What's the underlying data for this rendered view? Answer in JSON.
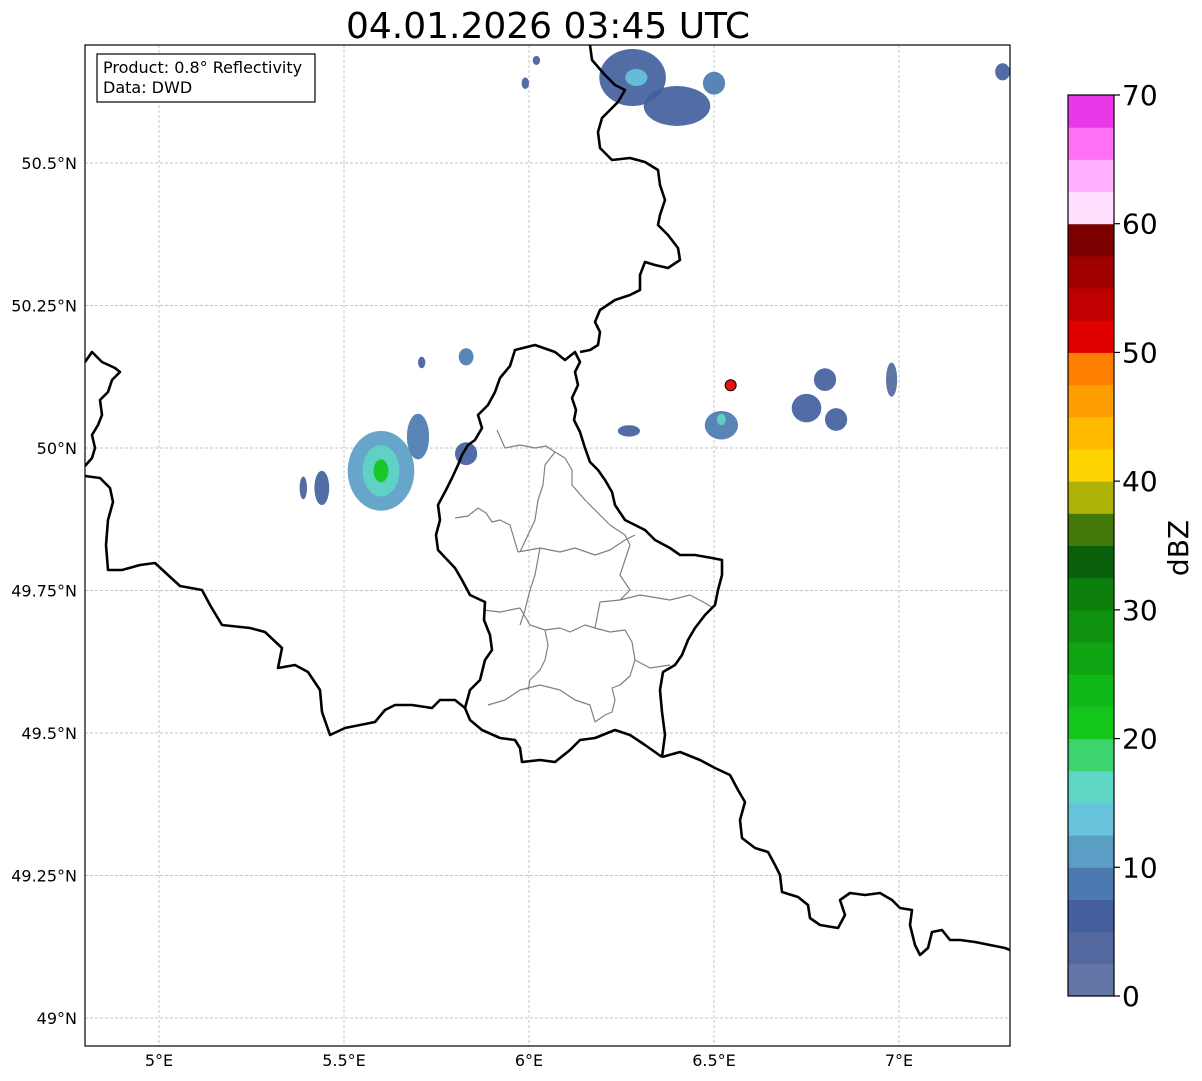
{
  "title": "04.01.2026 03:45 UTC",
  "info_box": {
    "line1": "Product: 0.8° Reflectivity",
    "line2": "Data: DWD"
  },
  "map": {
    "lon_range": [
      4.8,
      7.3
    ],
    "lat_range": [
      48.95,
      50.72
    ],
    "lon_ticks": [
      {
        "value": 5.0,
        "label": "5°E"
      },
      {
        "value": 5.5,
        "label": "5.5°E"
      },
      {
        "value": 6.0,
        "label": "6°E"
      },
      {
        "value": 6.5,
        "label": "6.5°E"
      },
      {
        "value": 7.0,
        "label": "7°E"
      }
    ],
    "lat_ticks": [
      {
        "value": 49.0,
        "label": "49°N"
      },
      {
        "value": 49.25,
        "label": "49.25°N"
      },
      {
        "value": 49.5,
        "label": "49.5°N"
      },
      {
        "value": 49.75,
        "label": "49.75°N"
      },
      {
        "value": 50.0,
        "label": "50°N"
      },
      {
        "value": 50.25,
        "label": "50.25°N"
      },
      {
        "value": 50.5,
        "label": "50.5°N"
      }
    ],
    "marker": {
      "lon": 6.545,
      "lat": 50.11,
      "color": "#ee1111"
    },
    "echoes": [
      {
        "lon": 5.6,
        "lat": 49.96,
        "rlon": 0.09,
        "rlat": 0.07,
        "dbz": 10
      },
      {
        "lon": 5.6,
        "lat": 49.96,
        "rlon": 0.05,
        "rlat": 0.045,
        "dbz": 15
      },
      {
        "lon": 5.6,
        "lat": 49.96,
        "rlon": 0.02,
        "rlat": 0.02,
        "dbz": 22
      },
      {
        "lon": 5.7,
        "lat": 50.02,
        "rlon": 0.03,
        "rlat": 0.04,
        "dbz": 8
      },
      {
        "lon": 5.39,
        "lat": 49.93,
        "rlon": 0.01,
        "rlat": 0.02,
        "dbz": 6
      },
      {
        "lon": 5.44,
        "lat": 49.93,
        "rlon": 0.02,
        "rlat": 0.03,
        "dbz": 6
      },
      {
        "lon": 5.83,
        "lat": 49.99,
        "rlon": 0.03,
        "rlat": 0.02,
        "dbz": 6
      },
      {
        "lon": 5.83,
        "lat": 50.16,
        "rlon": 0.02,
        "rlat": 0.015,
        "dbz": 9
      },
      {
        "lon": 5.71,
        "lat": 50.15,
        "rlon": 0.01,
        "rlat": 0.01,
        "dbz": 5
      },
      {
        "lon": 6.28,
        "lat": 50.65,
        "rlon": 0.09,
        "rlat": 0.05,
        "dbz": 7
      },
      {
        "lon": 6.29,
        "lat": 50.65,
        "rlon": 0.03,
        "rlat": 0.015,
        "dbz": 14
      },
      {
        "lon": 6.4,
        "lat": 50.6,
        "rlon": 0.09,
        "rlat": 0.035,
        "dbz": 7
      },
      {
        "lon": 6.5,
        "lat": 50.64,
        "rlon": 0.03,
        "rlat": 0.02,
        "dbz": 8
      },
      {
        "lon": 6.52,
        "lat": 50.04,
        "rlon": 0.045,
        "rlat": 0.025,
        "dbz": 9
      },
      {
        "lon": 6.52,
        "lat": 50.05,
        "rlon": 0.012,
        "rlat": 0.01,
        "dbz": 15
      },
      {
        "lon": 6.27,
        "lat": 50.03,
        "rlon": 0.03,
        "rlat": 0.01,
        "dbz": 5
      },
      {
        "lon": 6.75,
        "lat": 50.07,
        "rlon": 0.04,
        "rlat": 0.025,
        "dbz": 6
      },
      {
        "lon": 6.83,
        "lat": 50.05,
        "rlon": 0.03,
        "rlat": 0.02,
        "dbz": 5
      },
      {
        "lon": 6.8,
        "lat": 50.12,
        "rlon": 0.03,
        "rlat": 0.02,
        "dbz": 5
      },
      {
        "lon": 6.98,
        "lat": 50.12,
        "rlon": 0.015,
        "rlat": 0.03,
        "dbz": 4
      },
      {
        "lon": 7.28,
        "lat": 50.66,
        "rlon": 0.02,
        "rlat": 0.015,
        "dbz": 6
      },
      {
        "lon": 5.99,
        "lat": 50.64,
        "rlon": 0.01,
        "rlat": 0.01,
        "dbz": 5
      },
      {
        "lon": 6.02,
        "lat": 50.68,
        "rlon": 0.01,
        "rlat": 0.008,
        "dbz": 5
      }
    ]
  },
  "colorbar": {
    "label": "dBZ",
    "min": 0,
    "max": 70,
    "ticks": [
      "0",
      "10",
      "20",
      "30",
      "40",
      "50",
      "60",
      "70"
    ],
    "colors": [
      "#6475a8",
      "#5468a0",
      "#435f9e",
      "#4a7ab0",
      "#5a9dc5",
      "#66c3db",
      "#5ed6c4",
      "#3dd46f",
      "#12c61a",
      "#10b818",
      "#0fa512",
      "#0e920f",
      "#0c7f0d",
      "#0a610b",
      "#437a07",
      "#aeb207",
      "#ffd400",
      "#ffba00",
      "#ff9e00",
      "#ff8000",
      "#e00000",
      "#c00000",
      "#a00000",
      "#7a0000",
      "#ffe0ff",
      "#ffb0ff",
      "#ff70f5",
      "#ea37ea"
    ]
  }
}
